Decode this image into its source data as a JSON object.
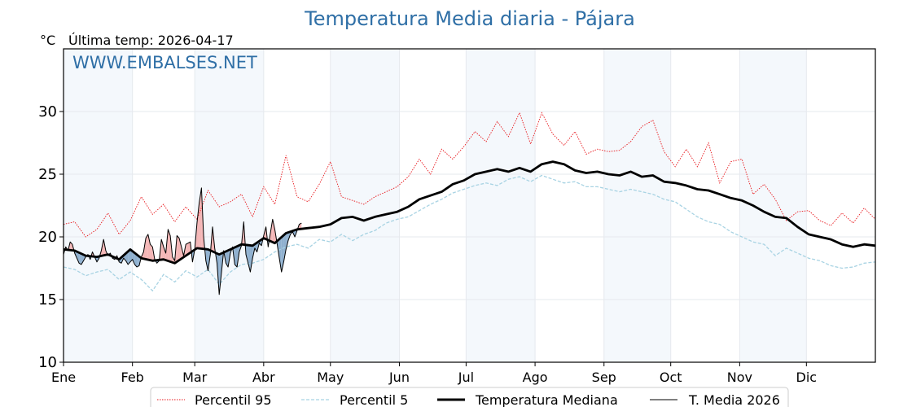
{
  "chart_data": {
    "type": "line",
    "title": "Temperatura Media diaria - Pájara",
    "ylabel": "°C",
    "subtitle": "Última temp: 2026-04-17",
    "watermark": "WWW.EMBALSES.NET",
    "ylim": [
      10,
      35
    ],
    "yticks": [
      10,
      15,
      20,
      25,
      30
    ],
    "xlim_days": [
      0,
      365
    ],
    "month_ticks": [
      {
        "label": "Ene",
        "day": 0
      },
      {
        "label": "Feb",
        "day": 31
      },
      {
        "label": "Mar",
        "day": 59
      },
      {
        "label": "Abr",
        "day": 90
      },
      {
        "label": "May",
        "day": 120
      },
      {
        "label": "Jun",
        "day": 151
      },
      {
        "label": "Jul",
        "day": 181
      },
      {
        "label": "Ago",
        "day": 212
      },
      {
        "label": "Sep",
        "day": 243
      },
      {
        "label": "Oct",
        "day": 273
      },
      {
        "label": "Nov",
        "day": 304
      },
      {
        "label": "Dic",
        "day": 334
      }
    ],
    "shaded_months": [
      "Ene",
      "Mar",
      "May",
      "Jul",
      "Sep",
      "Nov"
    ],
    "grid": true,
    "legend_position": "bottom-center",
    "colors": {
      "p95": "#e8161b",
      "p5": "#a8d3e3",
      "median": "#000000",
      "current": "#000000",
      "above_fill": "#f4b6b6",
      "below_fill": "#8fb0cf",
      "band": "#f4f8fc",
      "grid": "#e6e9ee",
      "title": "#2f6fa6"
    },
    "sample_step_days": 5,
    "series": [
      {
        "name": "Percentil 95",
        "key": "p95",
        "values": [
          21.0,
          21.2,
          20.0,
          20.6,
          21.9,
          20.2,
          21.3,
          23.2,
          21.8,
          22.6,
          21.2,
          22.4,
          21.4,
          23.7,
          22.4,
          22.8,
          23.4,
          21.6,
          24.0,
          22.6,
          26.5,
          23.2,
          22.8,
          24.2,
          26.0,
          23.2,
          22.9,
          22.6,
          23.2,
          23.6,
          24.0,
          24.8,
          26.2,
          25.0,
          27.0,
          26.2,
          27.2,
          28.4,
          27.6,
          29.2,
          28.0,
          29.9,
          27.4,
          29.9,
          28.2,
          27.3,
          28.4,
          26.6,
          27.0,
          26.8,
          26.9,
          27.6,
          28.8,
          29.3,
          26.8,
          25.6,
          27.0,
          25.6,
          27.5,
          24.3,
          26.0,
          26.2,
          23.4,
          24.2,
          23.0,
          21.3,
          22.0,
          22.1,
          21.3,
          20.9,
          21.9,
          21.1,
          22.3,
          21.4
        ]
      },
      {
        "name": "Percentil 5",
        "key": "p5",
        "values": [
          17.6,
          17.4,
          16.9,
          17.2,
          17.4,
          16.6,
          17.2,
          16.6,
          15.7,
          17.0,
          16.4,
          17.3,
          16.8,
          17.4,
          16.2,
          17.2,
          17.8,
          17.9,
          18.2,
          18.8,
          19.2,
          19.4,
          19.1,
          19.8,
          19.6,
          20.2,
          19.7,
          20.2,
          20.5,
          21.1,
          21.4,
          21.6,
          22.1,
          22.6,
          23.0,
          23.5,
          23.8,
          24.1,
          24.3,
          24.1,
          24.6,
          24.8,
          24.4,
          24.9,
          24.6,
          24.3,
          24.4,
          24.0,
          24.0,
          23.8,
          23.6,
          23.8,
          23.6,
          23.4,
          23.0,
          22.8,
          22.2,
          21.6,
          21.2,
          21.0,
          20.4,
          20.0,
          19.6,
          19.4,
          18.5,
          19.1,
          18.7,
          18.3,
          18.1,
          17.7,
          17.5,
          17.6,
          17.9,
          18.0
        ]
      },
      {
        "name": "Temperatura Mediana",
        "key": "median",
        "values": [
          19.0,
          18.9,
          18.5,
          18.4,
          18.6,
          18.2,
          19.0,
          18.3,
          18.1,
          18.2,
          17.9,
          18.5,
          19.1,
          19.0,
          18.6,
          19.0,
          19.4,
          19.3,
          19.9,
          19.5,
          20.3,
          20.6,
          20.7,
          20.8,
          21.0,
          21.5,
          21.6,
          21.3,
          21.6,
          21.8,
          22.0,
          22.4,
          23.0,
          23.3,
          23.6,
          24.2,
          24.5,
          25.0,
          25.2,
          25.4,
          25.2,
          25.5,
          25.2,
          25.8,
          26.0,
          25.8,
          25.3,
          25.1,
          25.2,
          25.0,
          24.9,
          25.2,
          24.8,
          24.9,
          24.4,
          24.3,
          24.1,
          23.8,
          23.7,
          23.4,
          23.1,
          22.9,
          22.5,
          22.0,
          21.6,
          21.5,
          20.8,
          20.2,
          20.0,
          19.8,
          19.4,
          19.2,
          19.4,
          19.3
        ]
      },
      {
        "name": "T. Media 2026",
        "key": "current",
        "start_day": 0,
        "step_days": 1,
        "values": [
          18.6,
          19.2,
          18.9,
          19.6,
          19.4,
          18.7,
          18.3,
          17.9,
          17.8,
          18.1,
          18.4,
          18.6,
          18.2,
          18.8,
          18.4,
          18.0,
          18.3,
          18.9,
          19.8,
          18.9,
          18.5,
          18.7,
          18.3,
          18.2,
          18.5,
          18.0,
          17.9,
          18.3,
          18.1,
          17.8,
          18.0,
          18.2,
          17.8,
          17.6,
          17.7,
          18.4,
          18.8,
          19.9,
          20.2,
          19.4,
          19.2,
          18.2,
          17.9,
          18.1,
          19.8,
          19.2,
          18.7,
          20.6,
          20.1,
          18.4,
          18.1,
          20.1,
          19.9,
          19.2,
          18.5,
          19.4,
          19.5,
          19.6,
          18.0,
          19.0,
          21.1,
          22.7,
          23.9,
          20.0,
          18.1,
          17.3,
          18.6,
          20.8,
          19.1,
          17.9,
          15.4,
          17.1,
          18.9,
          17.9,
          17.6,
          18.7,
          19.2,
          17.8,
          17.6,
          18.8,
          19.3,
          21.2,
          18.6,
          17.9,
          17.2,
          18.3,
          19.1,
          18.8,
          19.5,
          19.3,
          20.1,
          20.8,
          19.2,
          20.3,
          21.4,
          20.6,
          19.5,
          18.3,
          17.2,
          18.0,
          19.0,
          19.7,
          20.2,
          20.4,
          20.0,
          20.5,
          21.0,
          21.1
        ]
      }
    ],
    "legend": [
      {
        "label": "Percentil 95",
        "style": "dotted-red"
      },
      {
        "label": "Percentil 5",
        "style": "dashed-lightblue"
      },
      {
        "label": "Temperatura Mediana",
        "style": "thick-black"
      },
      {
        "label": "T. Media 2026",
        "style": "thin-black"
      }
    ]
  }
}
